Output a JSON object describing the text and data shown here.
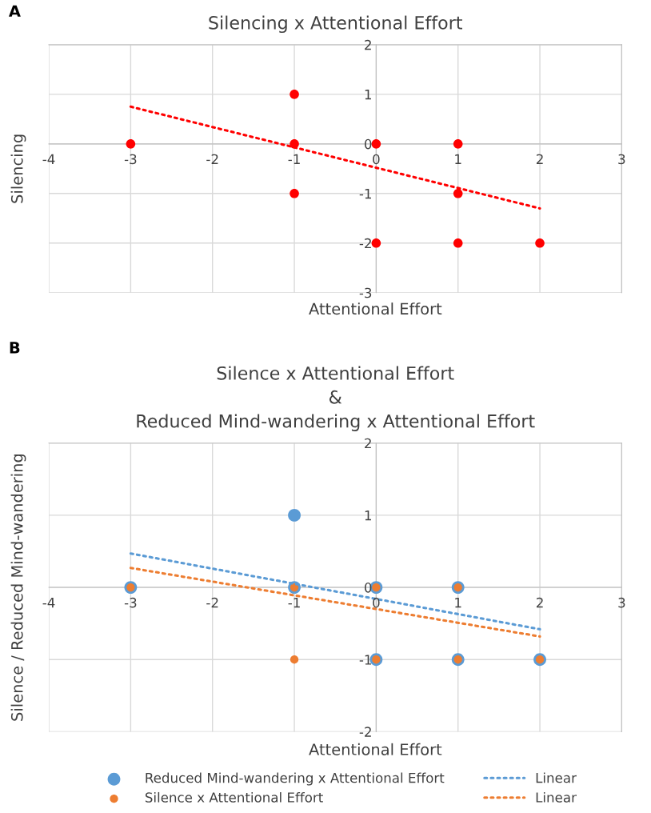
{
  "chart_data": [
    {
      "type": "scatter",
      "title": "Silencing x Attentional Effort",
      "xlabel": "Attentional Effort",
      "ylabel": "Silencing",
      "annotations": [
        "A"
      ],
      "xlim": [
        -4,
        3
      ],
      "xticks": [
        -4,
        -3,
        -2,
        -1,
        0,
        1,
        2,
        3
      ],
      "ylim": [
        -3,
        2
      ],
      "yticks": [
        -3,
        -2,
        -1,
        0,
        1,
        2
      ],
      "grid": true,
      "legend": false,
      "series": [
        {
          "color": "#ff0000",
          "marker": "circle",
          "x": [
            -3,
            -1,
            -1,
            -1,
            0,
            0,
            1,
            1,
            1,
            2
          ],
          "values": [
            0,
            1,
            0,
            -1,
            0,
            -2,
            0,
            -1,
            -2,
            -2
          ]
        },
        {
          "type": "line",
          "color": "#ff0000",
          "marker": "none",
          "line_style": "dotted",
          "x": [
            -3,
            2
          ],
          "values": [
            0.75,
            -1.3
          ]
        }
      ]
    },
    {
      "type": "scatter",
      "title": "Silence x Attentional Effort\n&\nReduced Mind-wandering x Attentional Effort",
      "xlabel": "Attentional Effort",
      "ylabel": "Silence / Reduced Mind-wandering",
      "annotations": [
        "B"
      ],
      "xlim": [
        -4,
        3
      ],
      "xticks": [
        -4,
        -3,
        -2,
        -1,
        0,
        1,
        2,
        3
      ],
      "ylim": [
        -2,
        2
      ],
      "yticks": [
        -2,
        -1,
        0,
        1,
        2
      ],
      "grid": true,
      "legend": "bottom",
      "series": [
        {
          "name": "Reduced Mind-wandering x Attentional Effort",
          "color": "#5b9bd5",
          "marker": "circle",
          "x": [
            -3,
            -1,
            -1,
            0,
            0,
            1,
            1,
            2
          ],
          "values": [
            0,
            1,
            0,
            0,
            -1,
            0,
            -1,
            -1
          ]
        },
        {
          "name": "Silence x Attentional Effort",
          "color": "#ed7d31",
          "marker": "circle",
          "x": [
            -3,
            -1,
            -1,
            0,
            0,
            1,
            1,
            2
          ],
          "values": [
            0,
            0,
            -1,
            0,
            -1,
            0,
            -1,
            -1
          ]
        },
        {
          "type": "line",
          "name": "Linear",
          "color": "#5b9bd5",
          "marker": "none",
          "line_style": "dotted",
          "x": [
            -3,
            2
          ],
          "values": [
            0.47,
            -0.58
          ]
        },
        {
          "type": "line",
          "name": "Linear",
          "color": "#ed7d31",
          "marker": "none",
          "line_style": "dotted",
          "x": [
            -3,
            2
          ],
          "values": [
            0.27,
            -0.68
          ]
        }
      ]
    }
  ]
}
